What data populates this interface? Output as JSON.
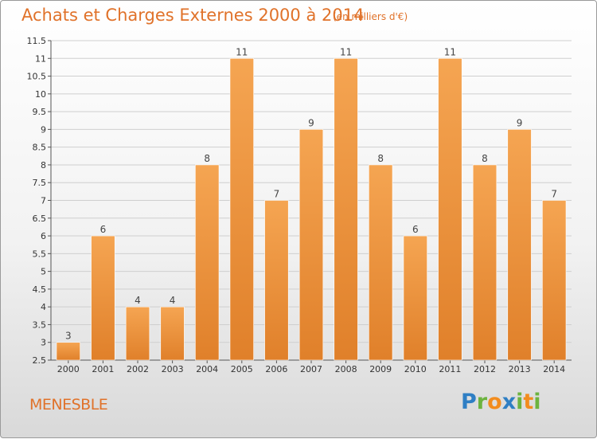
{
  "header": {
    "title": "Achats et Charges Externes 2000 à 2014",
    "unit": "(en milliers d'€)"
  },
  "commune": "MENESBLE",
  "logo": {
    "text": "Proxiti",
    "letters": [
      {
        "ch": "P",
        "color": "#2f7fc4"
      },
      {
        "ch": "r",
        "color": "#6cb33f"
      },
      {
        "ch": "o",
        "color": "#f28c1e"
      },
      {
        "ch": "x",
        "color": "#2f7fc4"
      },
      {
        "ch": "i",
        "color": "#6cb33f"
      },
      {
        "ch": "t",
        "color": "#f28c1e"
      },
      {
        "ch": "i",
        "color": "#6cb33f"
      }
    ]
  },
  "colors": {
    "bar_light": "#f5a552",
    "bar_dark": "#e0802a",
    "grid": "#cfcfcf",
    "accent": "#e0722a"
  },
  "chart_data": {
    "type": "bar",
    "categories": [
      "2000",
      "2001",
      "2002",
      "2003",
      "2004",
      "2005",
      "2006",
      "2007",
      "2008",
      "2009",
      "2010",
      "2011",
      "2012",
      "2013",
      "2014"
    ],
    "values": [
      3,
      6,
      4,
      4,
      8,
      11,
      7,
      9,
      11,
      8,
      6,
      11,
      8,
      9,
      7
    ],
    "ylim": [
      2.5,
      11.5
    ],
    "yticks": [
      2.5,
      3,
      3.5,
      4,
      4.5,
      5,
      5.5,
      6,
      6.5,
      7,
      7.5,
      8,
      8.5,
      9,
      9.5,
      10,
      10.5,
      11,
      11.5
    ],
    "grid": true,
    "data_labels": true
  }
}
